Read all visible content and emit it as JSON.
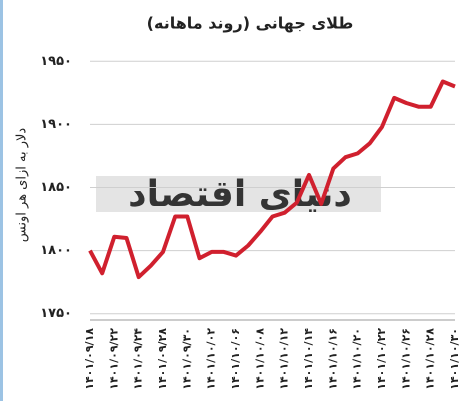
{
  "chart_data": {
    "type": "line",
    "title": "طلای جهانی (روند ماهانه)",
    "y_label": "دلار به ازای هر اونس",
    "watermark": "دنیای اقتصاد",
    "categories": [
      "۱۴۰۱/۰۹/۱۸",
      null,
      "۱۴۰۱/۰۹/۲۲",
      null,
      "۱۴۰۱/۰۹/۲۴",
      null,
      "۱۴۰۱/۰۹/۲۸",
      null,
      "۱۴۰۱/۰۹/۳۰",
      null,
      "۱۴۰۱/۱۰/۰۲",
      null,
      "۱۴۰۱/۱۰/۰۶",
      null,
      "۱۴۰۱/۱۰/۰۸",
      null,
      "۱۴۰۱/۱۰/۱۲",
      null,
      "۱۴۰۱/۱۰/۱۴",
      null,
      "۱۴۰۱/۱۰/۱۶",
      null,
      "۱۴۰۱/۱۰/۲۰",
      null,
      "۱۴۰۱/۱۰/۲۲",
      null,
      "۱۴۰۱/۱۰/۲۶",
      null,
      "۱۴۰۱/۱۰/۲۸",
      null,
      "۱۴۰۱/۱۰/۳۰"
    ],
    "values": [
      1800,
      1782,
      1811,
      1810,
      1779,
      1788,
      1799,
      1827,
      1827,
      1794,
      1799,
      1799,
      1796,
      1804,
      1815,
      1827,
      1830,
      1838,
      1860,
      1837,
      1865,
      1874,
      1877,
      1885,
      1898,
      1921,
      1917,
      1914,
      1914,
      1934,
      1930
    ],
    "color": "#d0202e",
    "ylim": [
      1745,
      1955
    ],
    "yticks": [
      {
        "value": 1750,
        "label": "۱۷۵۰"
      },
      {
        "value": 1800,
        "label": "۱۸۰۰"
      },
      {
        "value": 1850,
        "label": "۱۸۵۰"
      },
      {
        "value": 1900,
        "label": "۱۹۰۰"
      },
      {
        "value": 1950,
        "label": "۱۹۵۰"
      }
    ],
    "grid": true
  }
}
